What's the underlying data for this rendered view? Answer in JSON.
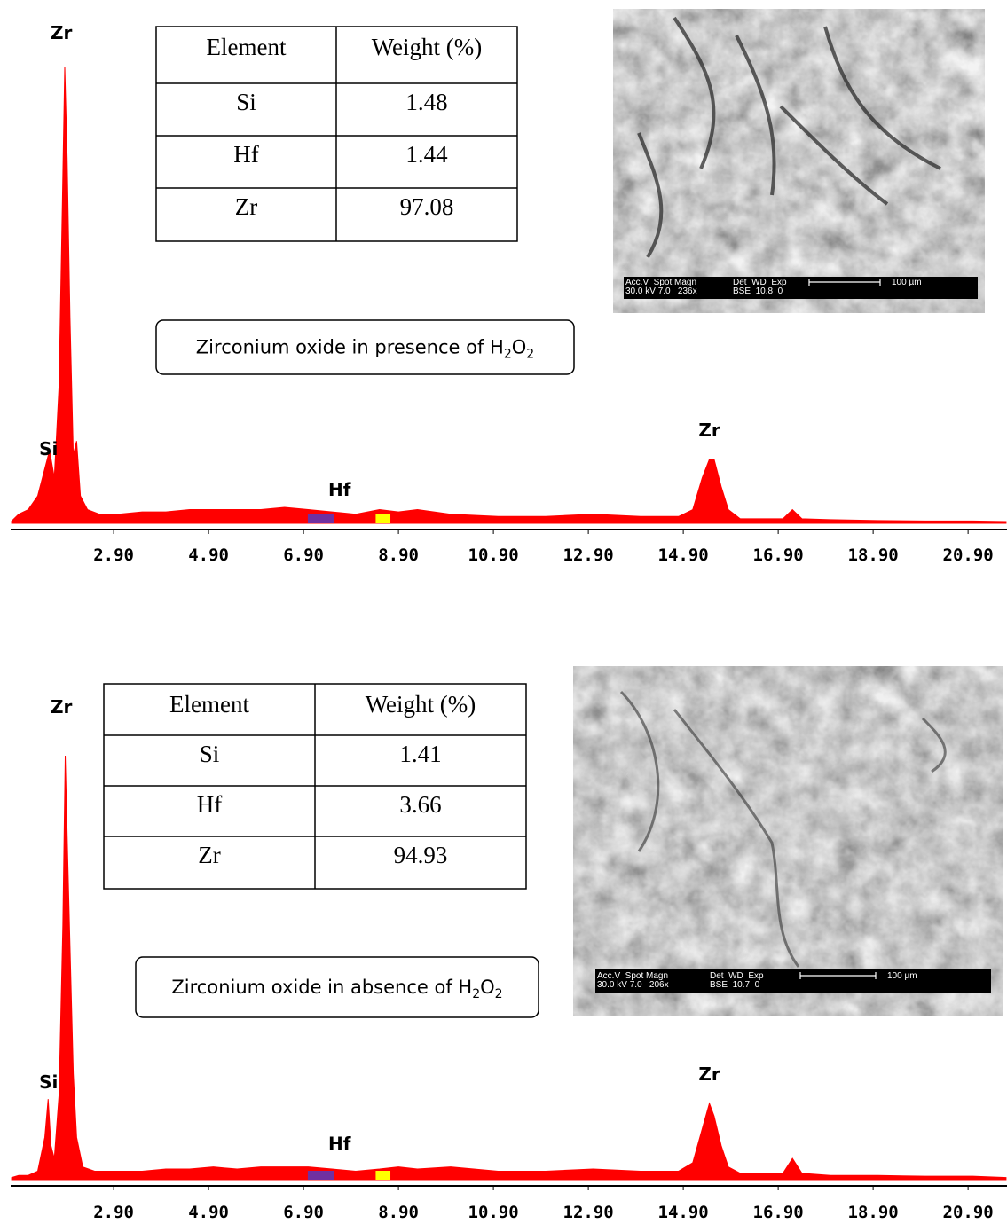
{
  "chart_data": [
    {
      "type": "area",
      "color": "#ff0000",
      "x": [
        0.75,
        0.9,
        1.1,
        1.3,
        1.45,
        1.55,
        1.65,
        1.75,
        1.82,
        1.87,
        1.92,
        1.98,
        2.05,
        2.12,
        2.2,
        2.35,
        2.6,
        3.0,
        3.5,
        4.0,
        4.5,
        5.0,
        5.5,
        6.0,
        6.5,
        7.0,
        7.5,
        8.0,
        8.5,
        8.9,
        9.3,
        10,
        11,
        12,
        13,
        14,
        14.8,
        15.1,
        15.3,
        15.45,
        15.55,
        15.7,
        15.85,
        16.1,
        17,
        17.2,
        17.4,
        18,
        19,
        20,
        21,
        21.7
      ],
      "values": [
        0.5,
        2,
        3,
        6,
        12,
        16,
        10,
        30,
        70,
        100,
        80,
        45,
        15,
        18,
        6,
        3,
        2,
        2,
        2.5,
        2.5,
        3,
        3,
        3,
        3,
        3.5,
        3,
        2.5,
        2,
        3,
        2.5,
        3,
        2,
        1.5,
        1.5,
        2,
        1.5,
        1.5,
        3,
        10,
        14,
        14,
        8,
        3,
        1,
        1,
        3,
        1,
        0.8,
        0.6,
        0.5,
        0.5,
        0.4
      ],
      "xlim": [
        0.73,
        21.72
      ],
      "ylim": [
        0,
        100
      ],
      "xticks": [
        {
          "value": 2.9,
          "label": "2.90"
        },
        {
          "value": 4.9,
          "label": "4.90"
        },
        {
          "value": 6.9,
          "label": "6.90"
        },
        {
          "value": 8.9,
          "label": "8.90"
        },
        {
          "value": 10.9,
          "label": "10.90"
        },
        {
          "value": 12.9,
          "label": "12.90"
        },
        {
          "value": 14.9,
          "label": "14.90"
        },
        {
          "value": 16.9,
          "label": "16.90"
        },
        {
          "value": 18.9,
          "label": "18.90"
        },
        {
          "value": 20.9,
          "label": "20.90"
        }
      ],
      "regions": [
        {
          "from": 6.99,
          "to": 7.55,
          "color": "#7030a0"
        },
        {
          "from": 8.42,
          "to": 8.73,
          "color": "#ffff00"
        }
      ],
      "annotations": [
        {
          "text": "Zr",
          "x": 1.8,
          "y": 106
        },
        {
          "text": "Si",
          "x": 1.53,
          "y": 15
        },
        {
          "text": "Hf",
          "x": 7.66,
          "y": 6
        },
        {
          "text": "Zr",
          "x": 15.45,
          "y": 19
        }
      ]
    },
    {
      "type": "area",
      "color": "#ff0000",
      "x": [
        0.75,
        0.9,
        1.1,
        1.3,
        1.45,
        1.52,
        1.58,
        1.65,
        1.75,
        1.83,
        1.88,
        1.93,
        1.98,
        2.05,
        2.12,
        2.25,
        2.5,
        3,
        3.5,
        4,
        4.5,
        5,
        5.5,
        6,
        6.5,
        7,
        7.5,
        8,
        8.5,
        8.9,
        9.3,
        10,
        11,
        12,
        13,
        14,
        14.8,
        15.1,
        15.3,
        15.45,
        15.55,
        15.7,
        15.85,
        16.1,
        17,
        17.2,
        17.4,
        18,
        19,
        20,
        21,
        21.7
      ],
      "values": [
        0.5,
        1,
        1,
        2,
        10,
        19,
        8,
        5,
        20,
        60,
        100,
        77,
        55,
        25,
        10,
        3,
        2,
        2,
        2,
        2.5,
        2.5,
        3,
        2.5,
        3,
        3,
        3,
        2.5,
        2,
        2.5,
        3,
        2.5,
        3,
        2,
        2,
        2.5,
        2,
        2,
        4,
        12,
        18,
        15,
        8,
        3,
        1.5,
        1.5,
        5,
        1.5,
        1,
        1,
        0.8,
        0.8,
        0.5
      ],
      "xlim": [
        0.73,
        21.72
      ],
      "ylim": [
        0,
        100
      ],
      "xticks": [
        {
          "value": 2.9,
          "label": "2.90"
        },
        {
          "value": 4.9,
          "label": "4.90"
        },
        {
          "value": 6.9,
          "label": "6.90"
        },
        {
          "value": 8.9,
          "label": "8.90"
        },
        {
          "value": 10.9,
          "label": "10.90"
        },
        {
          "value": 12.9,
          "label": "12.90"
        },
        {
          "value": 14.9,
          "label": "14.90"
        },
        {
          "value": 16.9,
          "label": "16.90"
        },
        {
          "value": 18.9,
          "label": "18.90"
        },
        {
          "value": 20.9,
          "label": "20.90"
        }
      ],
      "regions": [
        {
          "from": 6.99,
          "to": 7.55,
          "color": "#7030a0"
        },
        {
          "from": 8.42,
          "to": 8.73,
          "color": "#ffff00"
        }
      ],
      "annotations": [
        {
          "text": "Zr",
          "x": 1.8,
          "y": 110
        },
        {
          "text": "Si",
          "x": 1.53,
          "y": 21.5
        },
        {
          "text": "Hf",
          "x": 7.66,
          "y": 7
        },
        {
          "text": "Zr",
          "x": 15.45,
          "y": 23.4
        }
      ]
    }
  ],
  "panels": [
    {
      "table": {
        "header": [
          "Element",
          "Weight (%)"
        ],
        "rows": [
          [
            "Si",
            1.48
          ],
          [
            "Hf",
            1.44
          ],
          [
            "Zr",
            97.08
          ]
        ]
      },
      "caption": [
        "Zirconium oxide in presence of H",
        "2",
        "O",
        "2"
      ],
      "sem": {
        "info": [
          "Acc.V  Spot Magn",
          "30.0 kV 7.0   236x",
          "Det  WD  Exp",
          "BSE  10.8  0"
        ],
        "scale": "100 µm"
      }
    },
    {
      "table": {
        "header": [
          "Element",
          "Weight (%)"
        ],
        "rows": [
          [
            "Si",
            1.41
          ],
          [
            "Hf",
            3.66
          ],
          [
            "Zr",
            94.93
          ]
        ]
      },
      "caption": [
        "Zirconium oxide in absence of H",
        "2",
        "O",
        "2"
      ],
      "sem": {
        "info": [
          "Acc.V  Spot Magn",
          "30.0 kV 7.0   206x",
          "Det  WD  Exp",
          "BSE  10.7  0"
        ],
        "scale": "100 µm"
      }
    }
  ]
}
